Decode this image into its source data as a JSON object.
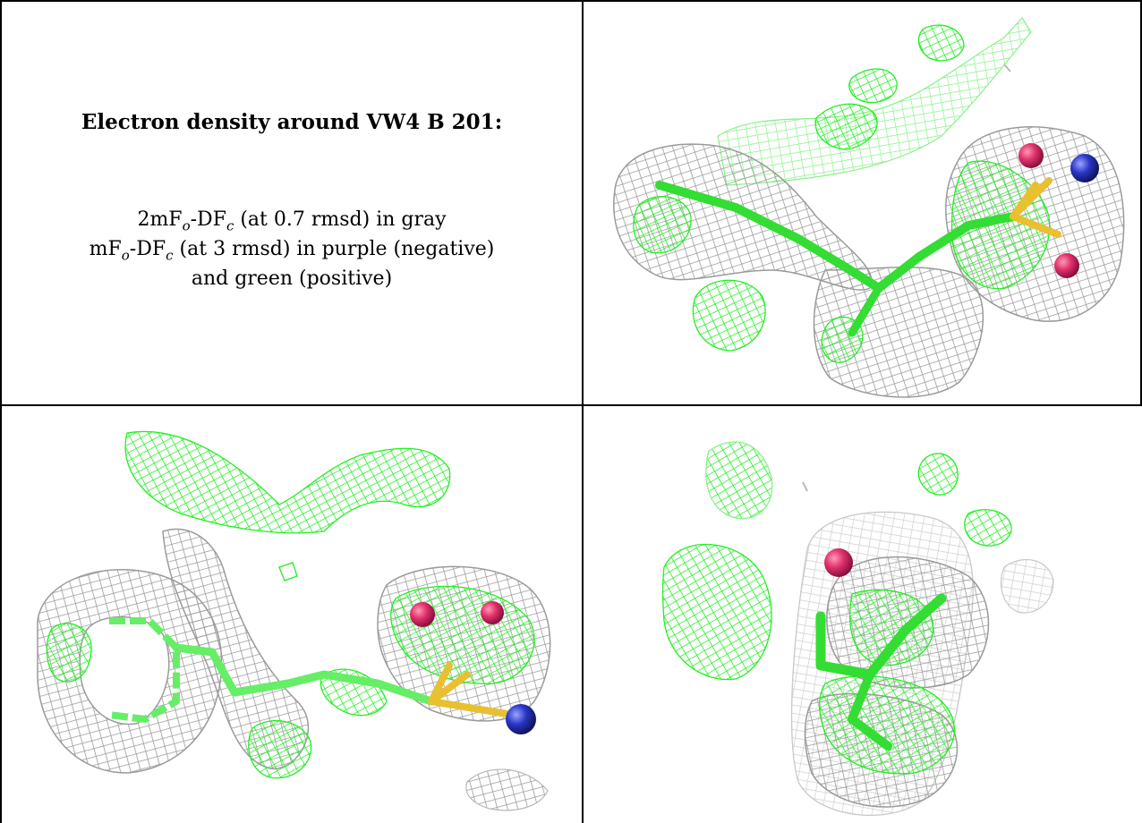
{
  "panel_text": {
    "heading": "Electron density around VW4 B 201:",
    "line1_a": "2mF",
    "line1_sub1": "o",
    "line1_b": "-DF",
    "line1_sub2": "c",
    "line1_c": " (at 0.7 rmsd) in gray",
    "line2_a": "mF",
    "line2_sub1": "o",
    "line2_b": "-DF",
    "line2_sub2": "c",
    "line2_c": " (at 3 rmsd) in purple (negative)",
    "line3": "and green (positive)"
  },
  "colors": {
    "gray_mesh": "#9a9a9a",
    "light_gray_mesh": "#c8c8c8",
    "green_mesh": "#22ee22",
    "light_green_mesh": "#7ef07e",
    "stick_green": "#33dd33",
    "oxygen_red": "#e0306a",
    "nitrogen_blue": "#2b35c8",
    "sulfur_yellow": "#e8c030"
  },
  "panels": [
    {
      "id": "top-right",
      "view": "density view 1"
    },
    {
      "id": "bottom-left",
      "view": "density view 2"
    },
    {
      "id": "bottom-right",
      "view": "density view 3"
    }
  ]
}
